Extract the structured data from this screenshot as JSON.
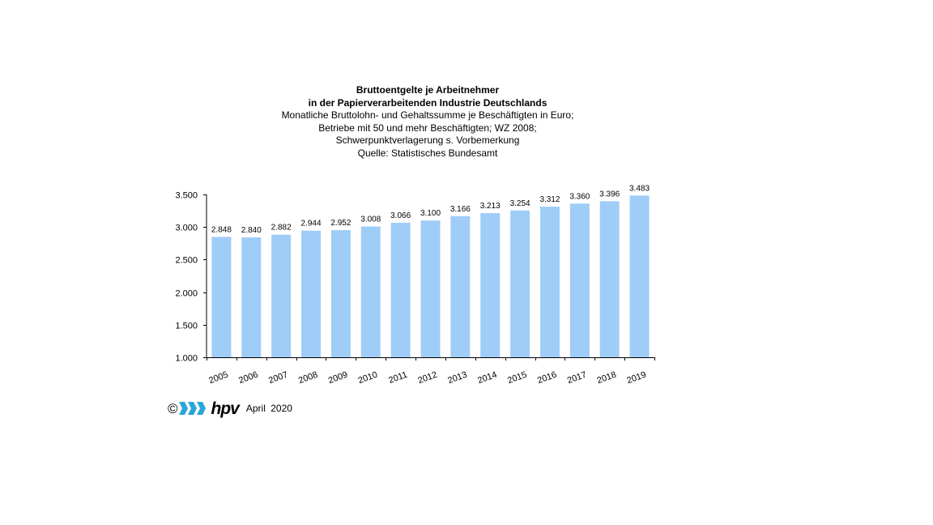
{
  "chart_data": {
    "type": "bar",
    "title": "Bruttoentgelte  je Arbeitnehmer",
    "subtitle_lines": [
      "in der Papierverarbeitenden Industrie Deutschlands",
      "Monatliche Bruttolohn-  und Gehaltssumme je Beschäftigten  in Euro;",
      "Betriebe mit 50 und mehr Beschäftigten;  WZ 2008;",
      "Schwerpunktverlagerung   s. Vorbemerkung",
      "Quelle:  Statistisches Bundesamt"
    ],
    "categories": [
      "2005",
      "2006",
      "2007",
      "2008",
      "2009",
      "2010",
      "2011",
      "2012",
      "2013",
      "2014",
      "2015",
      "2016",
      "2017",
      "2018",
      "2019"
    ],
    "values": [
      2848,
      2840,
      2882,
      2944,
      2952,
      3008,
      3066,
      3100,
      3166,
      3213,
      3254,
      3312,
      3360,
      3396,
      3483
    ],
    "data_labels": [
      "2.848",
      "2.840",
      "2.882",
      "2.944",
      "2.952",
      "3.008",
      "3.066",
      "3.100",
      "3.166",
      "3.213",
      "3.254",
      "3.312",
      "3.360",
      "3.396",
      "3.483"
    ],
    "y_ticks": [
      1000,
      1500,
      2000,
      2500,
      3000,
      3500
    ],
    "y_tick_labels": [
      "1.000",
      "1.500",
      "2.000",
      "2.500",
      "3.000",
      "3.500"
    ],
    "ylim": [
      1000,
      3500
    ],
    "xlabel": "",
    "ylabel": "",
    "grid": false,
    "bar_color": "#9fcdf8"
  },
  "footer": {
    "copyright_symbol": "©",
    "logo_text": "hpv",
    "logo_arrow_color": "#29a6d8",
    "date": "April  2020"
  }
}
